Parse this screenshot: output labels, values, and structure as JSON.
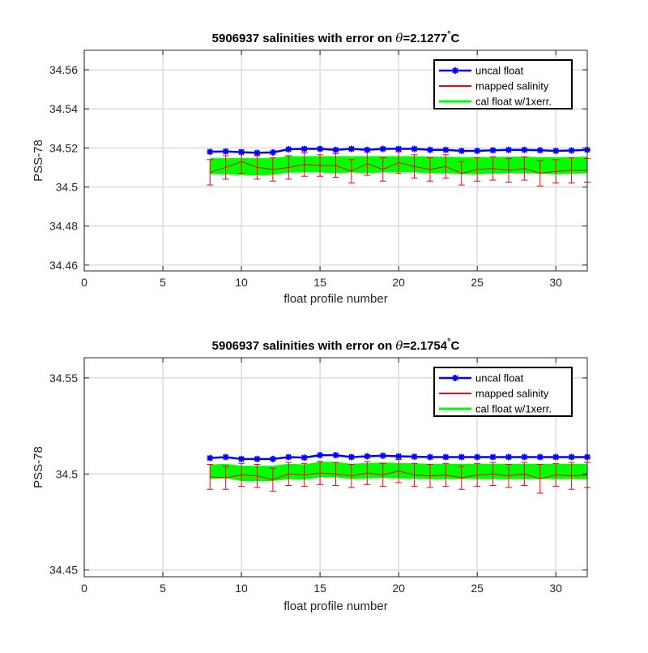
{
  "chart_data": [
    {
      "type": "line",
      "title_prefix": "5906937 salinities with error on ",
      "title_theta": "θ",
      "title_value": "=2.1277",
      "title_degree": "°",
      "title_unit": "C",
      "xlabel": "float profile number",
      "ylabel": "PSS-78",
      "xlim": [
        0,
        32
      ],
      "ylim": [
        34.457,
        34.57
      ],
      "xticks": [
        0,
        5,
        10,
        15,
        20,
        25,
        30
      ],
      "yticks": [
        34.46,
        34.48,
        34.5,
        34.52,
        34.54,
        34.56
      ],
      "ytick_labels": [
        "34.46",
        "34.48",
        "34.5",
        "34.52",
        "34.54",
        "34.56"
      ],
      "grid": true,
      "legend_position": "top-right",
      "series": [
        {
          "name": "uncal float",
          "color": "#0000ff"
        },
        {
          "name": "mapped salinity",
          "color": "#ff0000"
        },
        {
          "name": "cal float w/1xerr.",
          "color": "#00ff00"
        }
      ],
      "x": [
        8,
        9,
        10,
        11,
        12,
        13,
        14,
        15,
        16,
        17,
        18,
        19,
        20,
        21,
        22,
        23,
        24,
        25,
        26,
        27,
        28,
        29,
        30,
        31,
        32
      ],
      "uncal_float": [
        34.518,
        34.5182,
        34.5178,
        34.5175,
        34.5177,
        34.5193,
        34.5195,
        34.5195,
        34.519,
        34.5195,
        34.519,
        34.5195,
        34.5195,
        34.5195,
        34.519,
        34.519,
        34.5185,
        34.5185,
        34.5188,
        34.519,
        34.519,
        34.5188,
        34.5185,
        34.5187,
        34.519
      ],
      "mapped_salinity": [
        34.5075,
        34.51,
        34.513,
        34.51,
        34.509,
        34.51,
        34.5115,
        34.511,
        34.511,
        34.508,
        34.512,
        34.509,
        34.5125,
        34.5105,
        34.509,
        34.5105,
        34.507,
        34.509,
        34.5095,
        34.5085,
        34.5095,
        34.507,
        34.508,
        34.5085,
        34.5085
      ],
      "mapped_error": [
        0.0065,
        0.006,
        0.006,
        0.006,
        0.006,
        0.006,
        0.006,
        0.0055,
        0.006,
        0.006,
        0.006,
        0.006,
        0.0055,
        0.006,
        0.006,
        0.006,
        0.006,
        0.006,
        0.006,
        0.006,
        0.006,
        0.0065,
        0.006,
        0.0065,
        0.006
      ],
      "cal_float_upper": [
        34.5148,
        34.5148,
        34.5148,
        34.5148,
        34.5148,
        34.5158,
        34.5158,
        34.5158,
        34.5158,
        34.5158,
        34.5158,
        34.5158,
        34.5158,
        34.5158,
        34.5155,
        34.5155,
        34.5153,
        34.5153,
        34.5153,
        34.5155,
        34.5155,
        34.5153,
        34.5153,
        34.5153,
        34.5155
      ],
      "cal_float_lower": [
        34.5065,
        34.5065,
        34.5062,
        34.506,
        34.5062,
        34.5073,
        34.5075,
        34.5075,
        34.507,
        34.5075,
        34.507,
        34.5075,
        34.5075,
        34.5075,
        34.507,
        34.507,
        34.5065,
        34.5065,
        34.5068,
        34.507,
        34.507,
        34.5068,
        34.5065,
        34.5067,
        34.507
      ]
    },
    {
      "type": "line",
      "title_prefix": "5906937 salinities with error on ",
      "title_theta": "θ",
      "title_value": "=2.1754",
      "title_degree": "°",
      "title_unit": "C",
      "xlabel": "float profile number",
      "ylabel": "PSS-78",
      "xlim": [
        0,
        32
      ],
      "ylim": [
        34.4465,
        34.5605
      ],
      "xticks": [
        0,
        5,
        10,
        15,
        20,
        25,
        30
      ],
      "yticks": [
        34.45,
        34.5,
        34.55
      ],
      "ytick_labels": [
        "34.45",
        "34.5",
        "34.55"
      ],
      "grid": true,
      "legend_position": "top-right",
      "series": [
        {
          "name": "uncal float",
          "color": "#0000ff"
        },
        {
          "name": "mapped salinity",
          "color": "#ff0000"
        },
        {
          "name": "cal float w/1xerr.",
          "color": "#00ff00"
        }
      ],
      "x": [
        8,
        9,
        10,
        11,
        12,
        13,
        14,
        15,
        16,
        17,
        18,
        19,
        20,
        21,
        22,
        23,
        24,
        25,
        26,
        27,
        28,
        29,
        30,
        31,
        32
      ],
      "uncal_float": [
        34.5083,
        34.5088,
        34.5078,
        34.5078,
        34.5078,
        34.5088,
        34.5085,
        34.5098,
        34.5098,
        34.5088,
        34.5092,
        34.5095,
        34.5092,
        34.509,
        34.5088,
        34.5088,
        34.5088,
        34.5088,
        34.5088,
        34.5088,
        34.5088,
        34.5088,
        34.5088,
        34.5088,
        34.5088
      ],
      "mapped_salinity": [
        34.4985,
        34.498,
        34.4995,
        34.499,
        34.497,
        34.5,
        34.4995,
        34.5005,
        34.5,
        34.499,
        34.5005,
        34.4995,
        34.5015,
        34.4995,
        34.499,
        34.4995,
        34.498,
        34.4995,
        34.5,
        34.499,
        34.5,
        34.4975,
        34.4995,
        34.499,
        34.4995
      ],
      "mapped_error": [
        0.0065,
        0.006,
        0.006,
        0.006,
        0.006,
        0.006,
        0.006,
        0.006,
        0.006,
        0.006,
        0.006,
        0.006,
        0.006,
        0.006,
        0.006,
        0.006,
        0.006,
        0.006,
        0.006,
        0.006,
        0.006,
        0.0075,
        0.006,
        0.007,
        0.0065
      ],
      "cal_float_upper": [
        34.5048,
        34.5053,
        34.5043,
        34.5043,
        34.5043,
        34.5053,
        34.505,
        34.5063,
        34.5063,
        34.5053,
        34.5057,
        34.506,
        34.5057,
        34.5055,
        34.5053,
        34.5053,
        34.5053,
        34.5053,
        34.5053,
        34.5053,
        34.5053,
        34.5053,
        34.5053,
        34.5053,
        34.5053
      ],
      "cal_float_lower": [
        34.4973,
        34.4978,
        34.4963,
        34.4963,
        34.4963,
        34.4973,
        34.497,
        34.4983,
        34.4983,
        34.4973,
        34.4977,
        34.498,
        34.4977,
        34.4975,
        34.4973,
        34.4973,
        34.4973,
        34.4973,
        34.4973,
        34.4973,
        34.4973,
        34.4973,
        34.4973,
        34.4973,
        34.4973
      ]
    }
  ]
}
